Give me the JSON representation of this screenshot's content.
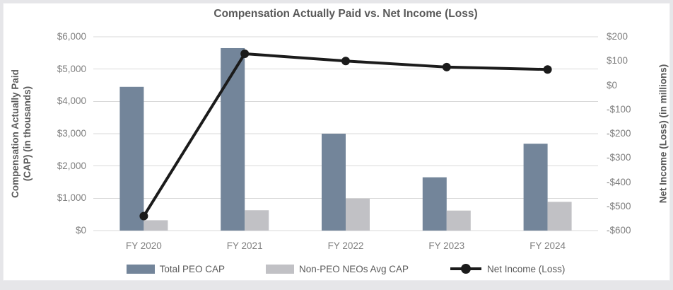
{
  "chart_data": {
    "type": "combo-bar-line",
    "title": "Compensation Actually Paid vs. Net Income (Loss)",
    "categories": [
      "FY 2020",
      "FY 2021",
      "FY 2022",
      "FY 2023",
      "FY 2024"
    ],
    "series": [
      {
        "name": "Total PEO CAP",
        "type": "bar",
        "axis": "left",
        "color": "#73859A",
        "values": [
          4450,
          5650,
          3000,
          1650,
          2690
        ]
      },
      {
        "name": "Non-PEO NEOs Avg CAP",
        "type": "bar",
        "axis": "left",
        "color": "#C1C1C5",
        "values": [
          320,
          630,
          990,
          620,
          890
        ]
      },
      {
        "name": "Net Income (Loss)",
        "type": "line",
        "axis": "right",
        "color": "#1B1B1B",
        "values": [
          -540,
          130,
          100,
          75,
          65
        ]
      }
    ],
    "left_axis": {
      "label_line1": "Compensation Actually Paid",
      "label_line2": "(CAP) (in thousands)",
      "min": 0,
      "max": 6000,
      "step": 1000,
      "ticks": [
        "$6,000",
        "$5,000",
        "$4,000",
        "$3,000",
        "$2,000",
        "$1,000",
        "$0"
      ]
    },
    "right_axis": {
      "label": "Net Income (Loss) (in millions)",
      "min": -600,
      "max": 200,
      "step": 100,
      "ticks": [
        "$200",
        "$100",
        "$0",
        "-$100",
        "-$200",
        "-$300",
        "-$400",
        "-$500",
        "-$600"
      ]
    },
    "grid": true,
    "legend_position": "bottom"
  },
  "colors": {
    "title": "#595959",
    "tick_label": "#7F7F7F",
    "axis_title": "#595959",
    "gridline": "#D9D9D9",
    "page_bg": "#E6E6E9",
    "card_bg": "#FFFFFF",
    "bar_peo": "#73859A",
    "bar_nonpeo": "#C1C1C5",
    "line": "#1B1B1B"
  }
}
